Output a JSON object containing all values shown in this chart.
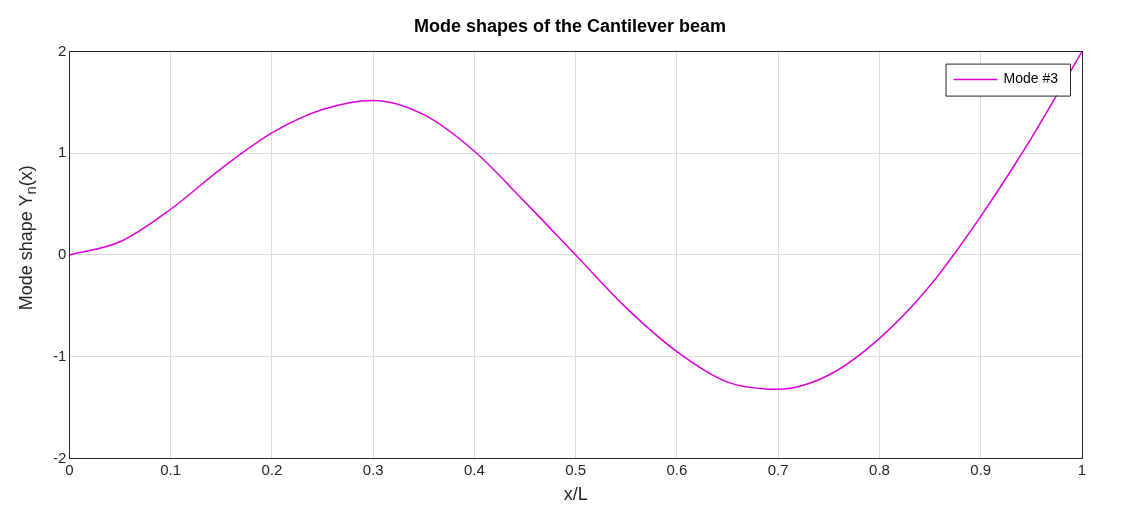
{
  "chart_data": {
    "type": "line",
    "title": "Mode shapes of the Cantilever beam",
    "xlabel": "x/L",
    "ylabel": "Mode shape Y$_{n}$(x)",
    "x": [
      0,
      0.05,
      0.1,
      0.15,
      0.2,
      0.25,
      0.3,
      0.35,
      0.4,
      0.45,
      0.5,
      0.55,
      0.6,
      0.65,
      0.7,
      0.75,
      0.8,
      0.85,
      0.9,
      0.95,
      1
    ],
    "series": [
      {
        "name": "Mode #3",
        "color": "#dd00dd",
        "values": [
          0,
          0.13,
          0.45,
          0.85,
          1.2,
          1.43,
          1.52,
          1.38,
          1.02,
          0.52,
          0,
          -0.52,
          -0.95,
          -1.25,
          -1.32,
          -1.18,
          -0.82,
          -0.3,
          0.38,
          1.15,
          2
        ]
      }
    ],
    "xlim": [
      0,
      1
    ],
    "xticks": [
      0,
      0.1,
      0.2,
      0.3,
      0.4,
      0.5,
      0.6,
      0.7,
      0.8,
      0.9,
      1
    ],
    "ylim": [
      -2,
      2
    ],
    "yticks": [
      -2,
      -1,
      0,
      1,
      2
    ],
    "grid": true,
    "legend": "top right",
    "marker": "none",
    "line_style": "solid"
  }
}
